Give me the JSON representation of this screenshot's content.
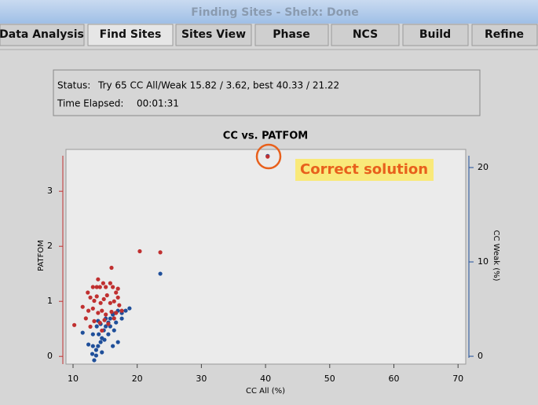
{
  "window": {
    "title": "Finding Sites - Shelx: Done"
  },
  "tabs": [
    "Data Analysis",
    "Find Sites",
    "Sites View",
    "Phase",
    "NCS",
    "Build",
    "Refine"
  ],
  "status": {
    "status_label": "Status:",
    "status_text": "Try 65 CC All/Weak 15.82 / 3.62, best 40.33 / 21.22",
    "time_label": "Time Elapsed:",
    "time_text": "00:01:31"
  },
  "chart_data": {
    "type": "scatter",
    "title": "CC vs. PATFOM",
    "x_label": "CC All (%)",
    "y_label": "PATFOM",
    "y2_label": "CC Weak (%)",
    "annotation": "Correct solution",
    "xlim": [
      8.9,
      71.2
    ],
    "xticks": [
      10,
      20,
      30,
      40,
      50,
      60,
      70
    ],
    "ylim": [
      -0.14,
      3.76
    ],
    "yticks": [
      0,
      1,
      2,
      3
    ],
    "y2lim": [
      -0.83,
      21.92
    ],
    "y2ticks": [
      0,
      10,
      20
    ],
    "y_color": "#c03030",
    "y2_color": "#1f4f9a",
    "series": [
      {
        "color": "#1f4f9a",
        "axis": "y2",
        "x": [
          40.33,
          23.6,
          11.5,
          13.1,
          13.3,
          13.0,
          13.6,
          13.9,
          14.3,
          14.5,
          14.0,
          14.8,
          15.1,
          15.5,
          15.8,
          16.2,
          16.6,
          17.0,
          17.6,
          18.2,
          18.8,
          13.1,
          13.7,
          14.3,
          14.9,
          15.5,
          16.4,
          17.0,
          16.2,
          13.6,
          14.5,
          12.4,
          15.1,
          15.8,
          16.7,
          17.6,
          13.9
        ],
        "values": [
          21.22,
          8.75,
          2.5,
          1.08,
          -0.42,
          0.25,
          0.67,
          1.08,
          1.5,
          1.92,
          2.33,
          2.75,
          3.17,
          3.58,
          4.0,
          4.42,
          4.58,
          4.83,
          4.58,
          4.83,
          5.08,
          2.33,
          3.17,
          3.42,
          1.75,
          2.33,
          2.75,
          1.5,
          1.08,
          0.08,
          0.42,
          1.25,
          4.0,
          3.17,
          3.58,
          4.0,
          3.75
        ]
      },
      {
        "color": "#c03030",
        "axis": "y",
        "x": [
          40.33,
          20.4,
          23.6,
          16.0,
          10.2,
          11.5,
          12.3,
          13.1,
          13.9,
          14.2,
          14.7,
          15.8,
          16.2,
          16.7,
          17.0,
          12.7,
          13.3,
          13.7,
          14.3,
          14.8,
          15.3,
          15.8,
          16.4,
          17.2,
          12.4,
          13.1,
          13.9,
          14.5,
          15.1,
          16.0,
          16.7,
          12.0,
          13.3,
          14.2,
          14.9,
          15.5,
          12.7,
          14.5,
          16.4,
          17.6,
          13.7,
          15.1,
          17.0
        ],
        "values": [
          3.63,
          1.91,
          1.89,
          1.61,
          0.57,
          0.9,
          1.16,
          1.26,
          1.4,
          1.26,
          1.33,
          1.33,
          1.26,
          1.16,
          1.07,
          1.07,
          1.01,
          1.09,
          0.97,
          1.04,
          1.11,
          0.97,
          1.0,
          0.93,
          0.83,
          0.87,
          0.79,
          0.83,
          0.76,
          0.81,
          0.79,
          0.69,
          0.64,
          0.61,
          0.66,
          0.59,
          0.54,
          0.47,
          0.69,
          0.83,
          1.26,
          1.26,
          1.23
        ]
      }
    ]
  }
}
